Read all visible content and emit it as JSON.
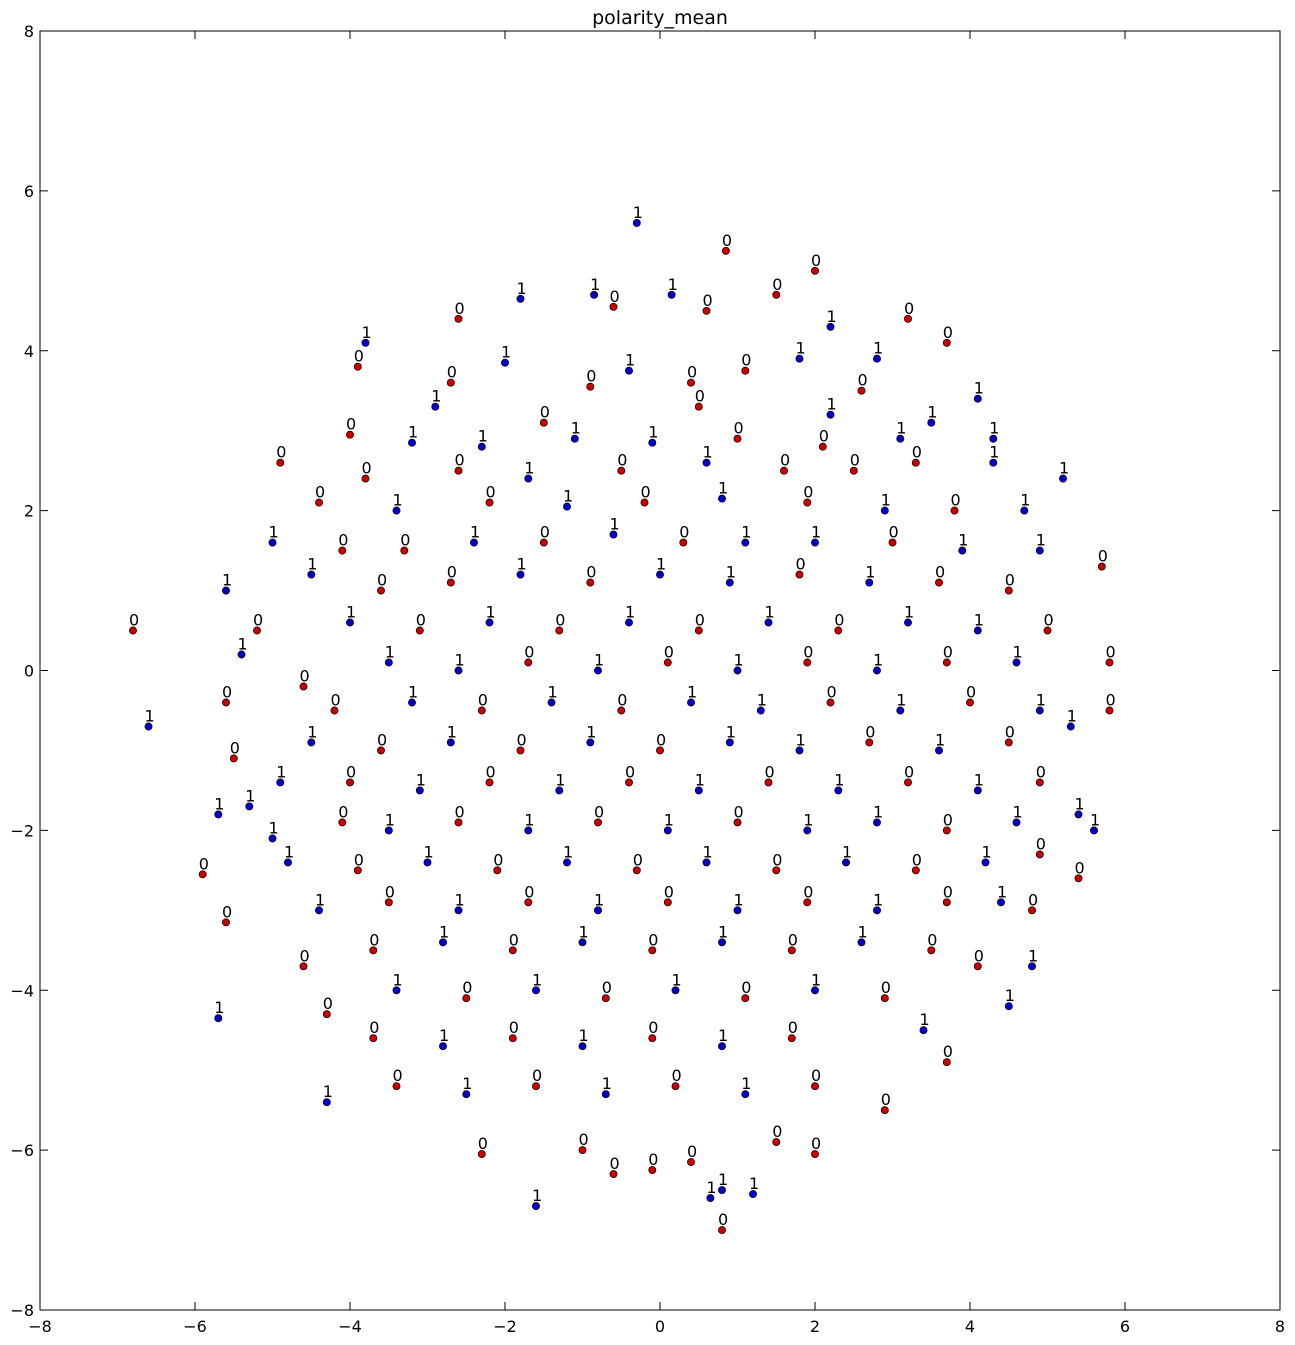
{
  "chart_data": {
    "type": "scatter",
    "title": "polarity_mean",
    "xlim": [
      -8,
      8
    ],
    "ylim": [
      -8,
      8
    ],
    "x_ticks": [
      -8,
      -6,
      -4,
      -2,
      0,
      2,
      4,
      6,
      8
    ],
    "y_ticks": [
      -8,
      -6,
      -4,
      -2,
      0,
      2,
      4,
      6,
      8
    ],
    "x_tick_labels": [
      "−8",
      "−6",
      "−4",
      "−2",
      "0",
      "2",
      "4",
      "6",
      "8"
    ],
    "y_tick_labels": [
      "−8",
      "−6",
      "−4",
      "−2",
      "0",
      "2",
      "4",
      "6",
      "8"
    ],
    "grid": false,
    "legend": "none",
    "colors": {
      "class_0": "#cc0000",
      "class_1": "#0000cc",
      "marker_edge": "#000000"
    },
    "points": [
      {
        "x": -0.3,
        "y": 5.6,
        "label": "1"
      },
      {
        "x": 0.85,
        "y": 5.25,
        "label": "0"
      },
      {
        "x": 2.0,
        "y": 5.0,
        "label": "0"
      },
      {
        "x": 1.5,
        "y": 4.7,
        "label": "0"
      },
      {
        "x": -1.8,
        "y": 4.65,
        "label": "1"
      },
      {
        "x": -0.85,
        "y": 4.7,
        "label": "1"
      },
      {
        "x": -0.6,
        "y": 4.55,
        "label": "0"
      },
      {
        "x": 0.15,
        "y": 4.7,
        "label": "1"
      },
      {
        "x": 0.6,
        "y": 4.5,
        "label": "0"
      },
      {
        "x": 2.2,
        "y": 4.3,
        "label": "1"
      },
      {
        "x": 3.2,
        "y": 4.4,
        "label": "0"
      },
      {
        "x": -2.6,
        "y": 4.4,
        "label": "0"
      },
      {
        "x": -3.8,
        "y": 4.1,
        "label": "1"
      },
      {
        "x": -3.9,
        "y": 3.8,
        "label": "0"
      },
      {
        "x": -2.0,
        "y": 3.85,
        "label": "1"
      },
      {
        "x": -0.4,
        "y": 3.75,
        "label": "1"
      },
      {
        "x": 1.1,
        "y": 3.75,
        "label": "0"
      },
      {
        "x": 1.8,
        "y": 3.9,
        "label": "1"
      },
      {
        "x": 2.8,
        "y": 3.9,
        "label": "1"
      },
      {
        "x": 3.7,
        "y": 4.1,
        "label": "0"
      },
      {
        "x": -2.7,
        "y": 3.6,
        "label": "0"
      },
      {
        "x": -0.9,
        "y": 3.55,
        "label": "0"
      },
      {
        "x": 0.4,
        "y": 3.6,
        "label": "0"
      },
      {
        "x": 2.6,
        "y": 3.5,
        "label": "0"
      },
      {
        "x": 4.1,
        "y": 3.4,
        "label": "1"
      },
      {
        "x": -2.9,
        "y": 3.3,
        "label": "1"
      },
      {
        "x": -1.5,
        "y": 3.1,
        "label": "0"
      },
      {
        "x": 0.5,
        "y": 3.3,
        "label": "0"
      },
      {
        "x": 2.2,
        "y": 3.2,
        "label": "1"
      },
      {
        "x": 3.5,
        "y": 3.1,
        "label": "1"
      },
      {
        "x": -4.0,
        "y": 2.95,
        "label": "0"
      },
      {
        "x": -3.2,
        "y": 2.85,
        "label": "1"
      },
      {
        "x": -2.3,
        "y": 2.8,
        "label": "1"
      },
      {
        "x": -1.1,
        "y": 2.9,
        "label": "1"
      },
      {
        "x": -0.1,
        "y": 2.85,
        "label": "1"
      },
      {
        "x": 1.0,
        "y": 2.9,
        "label": "0"
      },
      {
        "x": 2.1,
        "y": 2.8,
        "label": "0"
      },
      {
        "x": 3.1,
        "y": 2.9,
        "label": "1"
      },
      {
        "x": 4.3,
        "y": 2.9,
        "label": "1"
      },
      {
        "x": -4.9,
        "y": 2.6,
        "label": "0"
      },
      {
        "x": -3.8,
        "y": 2.4,
        "label": "0"
      },
      {
        "x": -2.6,
        "y": 2.5,
        "label": "0"
      },
      {
        "x": -1.7,
        "y": 2.4,
        "label": "1"
      },
      {
        "x": -0.5,
        "y": 2.5,
        "label": "0"
      },
      {
        "x": 0.6,
        "y": 2.6,
        "label": "1"
      },
      {
        "x": 1.6,
        "y": 2.5,
        "label": "0"
      },
      {
        "x": 2.5,
        "y": 2.5,
        "label": "0"
      },
      {
        "x": 3.3,
        "y": 2.6,
        "label": "0"
      },
      {
        "x": 4.3,
        "y": 2.6,
        "label": "1"
      },
      {
        "x": 5.2,
        "y": 2.4,
        "label": "1"
      },
      {
        "x": -4.4,
        "y": 2.1,
        "label": "0"
      },
      {
        "x": -3.4,
        "y": 2.0,
        "label": "1"
      },
      {
        "x": -2.2,
        "y": 2.1,
        "label": "0"
      },
      {
        "x": -1.2,
        "y": 2.05,
        "label": "1"
      },
      {
        "x": -0.2,
        "y": 2.1,
        "label": "0"
      },
      {
        "x": 0.8,
        "y": 2.15,
        "label": "1"
      },
      {
        "x": 1.9,
        "y": 2.1,
        "label": "0"
      },
      {
        "x": 2.9,
        "y": 2.0,
        "label": "1"
      },
      {
        "x": 3.8,
        "y": 2.0,
        "label": "0"
      },
      {
        "x": 4.7,
        "y": 2.0,
        "label": "1"
      },
      {
        "x": -5.0,
        "y": 1.6,
        "label": "1"
      },
      {
        "x": -4.1,
        "y": 1.5,
        "label": "0"
      },
      {
        "x": -3.3,
        "y": 1.5,
        "label": "0"
      },
      {
        "x": -2.4,
        "y": 1.6,
        "label": "1"
      },
      {
        "x": -1.5,
        "y": 1.6,
        "label": "0"
      },
      {
        "x": -0.6,
        "y": 1.7,
        "label": "1"
      },
      {
        "x": 0.3,
        "y": 1.6,
        "label": "0"
      },
      {
        "x": 1.1,
        "y": 1.6,
        "label": "1"
      },
      {
        "x": 2.0,
        "y": 1.6,
        "label": "1"
      },
      {
        "x": 3.0,
        "y": 1.6,
        "label": "0"
      },
      {
        "x": 3.9,
        "y": 1.5,
        "label": "1"
      },
      {
        "x": 4.9,
        "y": 1.5,
        "label": "1"
      },
      {
        "x": -5.6,
        "y": 1.0,
        "label": "1"
      },
      {
        "x": -4.5,
        "y": 1.2,
        "label": "1"
      },
      {
        "x": -3.6,
        "y": 1.0,
        "label": "0"
      },
      {
        "x": -2.7,
        "y": 1.1,
        "label": "0"
      },
      {
        "x": -1.8,
        "y": 1.2,
        "label": "1"
      },
      {
        "x": -0.9,
        "y": 1.1,
        "label": "0"
      },
      {
        "x": 0.0,
        "y": 1.2,
        "label": "1"
      },
      {
        "x": 0.9,
        "y": 1.1,
        "label": "1"
      },
      {
        "x": 1.8,
        "y": 1.2,
        "label": "0"
      },
      {
        "x": 2.7,
        "y": 1.1,
        "label": "1"
      },
      {
        "x": 3.6,
        "y": 1.1,
        "label": "0"
      },
      {
        "x": 4.5,
        "y": 1.0,
        "label": "0"
      },
      {
        "x": 5.7,
        "y": 1.3,
        "label": "0"
      },
      {
        "x": -6.8,
        "y": 0.5,
        "label": "0"
      },
      {
        "x": -5.2,
        "y": 0.5,
        "label": "0"
      },
      {
        "x": -4.0,
        "y": 0.6,
        "label": "1"
      },
      {
        "x": -3.1,
        "y": 0.5,
        "label": "0"
      },
      {
        "x": -2.2,
        "y": 0.6,
        "label": "1"
      },
      {
        "x": -1.3,
        "y": 0.5,
        "label": "0"
      },
      {
        "x": -0.4,
        "y": 0.6,
        "label": "1"
      },
      {
        "x": 0.5,
        "y": 0.5,
        "label": "0"
      },
      {
        "x": 1.4,
        "y": 0.6,
        "label": "1"
      },
      {
        "x": 2.3,
        "y": 0.5,
        "label": "0"
      },
      {
        "x": 3.2,
        "y": 0.6,
        "label": "1"
      },
      {
        "x": 4.1,
        "y": 0.5,
        "label": "1"
      },
      {
        "x": 5.0,
        "y": 0.5,
        "label": "0"
      },
      {
        "x": -5.4,
        "y": 0.2,
        "label": "1"
      },
      {
        "x": -4.6,
        "y": -0.2,
        "label": "0"
      },
      {
        "x": -3.5,
        "y": 0.1,
        "label": "1"
      },
      {
        "x": -2.6,
        "y": 0.0,
        "label": "1"
      },
      {
        "x": -1.7,
        "y": 0.1,
        "label": "0"
      },
      {
        "x": -0.8,
        "y": 0.0,
        "label": "1"
      },
      {
        "x": 0.1,
        "y": 0.1,
        "label": "0"
      },
      {
        "x": 1.0,
        "y": 0.0,
        "label": "1"
      },
      {
        "x": 1.9,
        "y": 0.1,
        "label": "0"
      },
      {
        "x": 2.8,
        "y": 0.0,
        "label": "1"
      },
      {
        "x": 3.7,
        "y": 0.1,
        "label": "0"
      },
      {
        "x": 4.6,
        "y": 0.1,
        "label": "1"
      },
      {
        "x": 5.8,
        "y": 0.1,
        "label": "0"
      },
      {
        "x": -5.6,
        "y": -0.4,
        "label": "0"
      },
      {
        "x": -4.2,
        "y": -0.5,
        "label": "0"
      },
      {
        "x": -3.2,
        "y": -0.4,
        "label": "1"
      },
      {
        "x": -2.3,
        "y": -0.5,
        "label": "0"
      },
      {
        "x": -1.4,
        "y": -0.4,
        "label": "1"
      },
      {
        "x": -0.5,
        "y": -0.5,
        "label": "0"
      },
      {
        "x": 0.4,
        "y": -0.4,
        "label": "1"
      },
      {
        "x": 1.3,
        "y": -0.5,
        "label": "1"
      },
      {
        "x": 2.2,
        "y": -0.4,
        "label": "0"
      },
      {
        "x": 3.1,
        "y": -0.5,
        "label": "1"
      },
      {
        "x": 4.0,
        "y": -0.4,
        "label": "0"
      },
      {
        "x": 4.9,
        "y": -0.5,
        "label": "1"
      },
      {
        "x": 5.8,
        "y": -0.5,
        "label": "0"
      },
      {
        "x": -6.6,
        "y": -0.7,
        "label": "1"
      },
      {
        "x": -5.5,
        "y": -1.1,
        "label": "0"
      },
      {
        "x": -4.5,
        "y": -0.9,
        "label": "1"
      },
      {
        "x": -3.6,
        "y": -1.0,
        "label": "0"
      },
      {
        "x": -2.7,
        "y": -0.9,
        "label": "1"
      },
      {
        "x": -1.8,
        "y": -1.0,
        "label": "0"
      },
      {
        "x": -0.9,
        "y": -0.9,
        "label": "1"
      },
      {
        "x": 0.0,
        "y": -1.0,
        "label": "0"
      },
      {
        "x": 0.9,
        "y": -0.9,
        "label": "1"
      },
      {
        "x": 1.8,
        "y": -1.0,
        "label": "1"
      },
      {
        "x": 2.7,
        "y": -0.9,
        "label": "0"
      },
      {
        "x": 3.6,
        "y": -1.0,
        "label": "1"
      },
      {
        "x": 4.5,
        "y": -0.9,
        "label": "0"
      },
      {
        "x": 5.3,
        "y": -0.7,
        "label": "1"
      },
      {
        "x": -5.7,
        "y": -1.8,
        "label": "1"
      },
      {
        "x": -5.3,
        "y": -1.7,
        "label": "1"
      },
      {
        "x": -4.9,
        "y": -1.4,
        "label": "1"
      },
      {
        "x": -4.0,
        "y": -1.4,
        "label": "0"
      },
      {
        "x": -3.1,
        "y": -1.5,
        "label": "1"
      },
      {
        "x": -2.2,
        "y": -1.4,
        "label": "0"
      },
      {
        "x": -1.3,
        "y": -1.5,
        "label": "1"
      },
      {
        "x": -0.4,
        "y": -1.4,
        "label": "0"
      },
      {
        "x": 0.5,
        "y": -1.5,
        "label": "1"
      },
      {
        "x": 1.4,
        "y": -1.4,
        "label": "0"
      },
      {
        "x": 2.3,
        "y": -1.5,
        "label": "1"
      },
      {
        "x": 3.2,
        "y": -1.4,
        "label": "0"
      },
      {
        "x": 4.1,
        "y": -1.5,
        "label": "1"
      },
      {
        "x": 4.9,
        "y": -1.4,
        "label": "0"
      },
      {
        "x": -5.0,
        "y": -2.1,
        "label": "1"
      },
      {
        "x": -4.1,
        "y": -1.9,
        "label": "0"
      },
      {
        "x": -3.5,
        "y": -2.0,
        "label": "1"
      },
      {
        "x": -2.6,
        "y": -1.9,
        "label": "0"
      },
      {
        "x": -1.7,
        "y": -2.0,
        "label": "1"
      },
      {
        "x": -0.8,
        "y": -1.9,
        "label": "0"
      },
      {
        "x": 0.1,
        "y": -2.0,
        "label": "1"
      },
      {
        "x": 1.0,
        "y": -1.9,
        "label": "0"
      },
      {
        "x": 1.9,
        "y": -2.0,
        "label": "1"
      },
      {
        "x": 2.8,
        "y": -1.9,
        "label": "1"
      },
      {
        "x": 3.7,
        "y": -2.0,
        "label": "0"
      },
      {
        "x": 4.6,
        "y": -1.9,
        "label": "1"
      },
      {
        "x": 5.4,
        "y": -1.8,
        "label": "1"
      },
      {
        "x": 5.6,
        "y": -2.0,
        "label": "1"
      },
      {
        "x": -5.9,
        "y": -2.55,
        "label": "0"
      },
      {
        "x": -4.8,
        "y": -2.4,
        "label": "1"
      },
      {
        "x": -3.9,
        "y": -2.5,
        "label": "0"
      },
      {
        "x": -3.0,
        "y": -2.4,
        "label": "1"
      },
      {
        "x": -2.1,
        "y": -2.5,
        "label": "0"
      },
      {
        "x": -1.2,
        "y": -2.4,
        "label": "1"
      },
      {
        "x": -0.3,
        "y": -2.5,
        "label": "0"
      },
      {
        "x": 0.6,
        "y": -2.4,
        "label": "1"
      },
      {
        "x": 1.5,
        "y": -2.5,
        "label": "0"
      },
      {
        "x": 2.4,
        "y": -2.4,
        "label": "1"
      },
      {
        "x": 3.3,
        "y": -2.5,
        "label": "0"
      },
      {
        "x": 4.2,
        "y": -2.4,
        "label": "1"
      },
      {
        "x": 4.9,
        "y": -2.3,
        "label": "0"
      },
      {
        "x": 5.4,
        "y": -2.6,
        "label": "0"
      },
      {
        "x": -5.6,
        "y": -3.15,
        "label": "0"
      },
      {
        "x": -4.4,
        "y": -3.0,
        "label": "1"
      },
      {
        "x": -3.5,
        "y": -2.9,
        "label": "0"
      },
      {
        "x": -2.6,
        "y": -3.0,
        "label": "1"
      },
      {
        "x": -1.7,
        "y": -2.9,
        "label": "0"
      },
      {
        "x": -0.8,
        "y": -3.0,
        "label": "1"
      },
      {
        "x": 0.1,
        "y": -2.9,
        "label": "0"
      },
      {
        "x": 1.0,
        "y": -3.0,
        "label": "1"
      },
      {
        "x": 1.9,
        "y": -2.9,
        "label": "0"
      },
      {
        "x": 2.8,
        "y": -3.0,
        "label": "1"
      },
      {
        "x": 3.7,
        "y": -2.9,
        "label": "0"
      },
      {
        "x": 4.4,
        "y": -2.9,
        "label": "1"
      },
      {
        "x": 4.8,
        "y": -3.0,
        "label": "0"
      },
      {
        "x": -4.6,
        "y": -3.7,
        "label": "0"
      },
      {
        "x": -3.7,
        "y": -3.5,
        "label": "0"
      },
      {
        "x": -2.8,
        "y": -3.4,
        "label": "1"
      },
      {
        "x": -1.9,
        "y": -3.5,
        "label": "0"
      },
      {
        "x": -1.0,
        "y": -3.4,
        "label": "1"
      },
      {
        "x": -0.1,
        "y": -3.5,
        "label": "0"
      },
      {
        "x": 0.8,
        "y": -3.4,
        "label": "1"
      },
      {
        "x": 1.7,
        "y": -3.5,
        "label": "0"
      },
      {
        "x": 2.6,
        "y": -3.4,
        "label": "1"
      },
      {
        "x": 3.5,
        "y": -3.5,
        "label": "0"
      },
      {
        "x": 4.1,
        "y": -3.7,
        "label": "0"
      },
      {
        "x": 4.8,
        "y": -3.7,
        "label": "1"
      },
      {
        "x": -5.7,
        "y": -4.35,
        "label": "1"
      },
      {
        "x": -4.3,
        "y": -4.3,
        "label": "0"
      },
      {
        "x": -3.4,
        "y": -4.0,
        "label": "1"
      },
      {
        "x": -2.5,
        "y": -4.1,
        "label": "0"
      },
      {
        "x": -1.6,
        "y": -4.0,
        "label": "1"
      },
      {
        "x": -0.7,
        "y": -4.1,
        "label": "0"
      },
      {
        "x": 0.2,
        "y": -4.0,
        "label": "1"
      },
      {
        "x": 1.1,
        "y": -4.1,
        "label": "0"
      },
      {
        "x": 2.0,
        "y": -4.0,
        "label": "1"
      },
      {
        "x": 2.9,
        "y": -4.1,
        "label": "0"
      },
      {
        "x": 4.5,
        "y": -4.2,
        "label": "1"
      },
      {
        "x": -3.7,
        "y": -4.6,
        "label": "0"
      },
      {
        "x": -2.8,
        "y": -4.7,
        "label": "1"
      },
      {
        "x": -1.9,
        "y": -4.6,
        "label": "0"
      },
      {
        "x": -1.0,
        "y": -4.7,
        "label": "1"
      },
      {
        "x": -0.1,
        "y": -4.6,
        "label": "0"
      },
      {
        "x": 0.8,
        "y": -4.7,
        "label": "1"
      },
      {
        "x": 1.7,
        "y": -4.6,
        "label": "0"
      },
      {
        "x": 3.4,
        "y": -4.5,
        "label": "1"
      },
      {
        "x": 3.7,
        "y": -4.9,
        "label": "0"
      },
      {
        "x": -4.3,
        "y": -5.4,
        "label": "1"
      },
      {
        "x": -3.4,
        "y": -5.2,
        "label": "0"
      },
      {
        "x": -2.5,
        "y": -5.3,
        "label": "1"
      },
      {
        "x": -1.6,
        "y": -5.2,
        "label": "0"
      },
      {
        "x": -0.7,
        "y": -5.3,
        "label": "1"
      },
      {
        "x": 0.2,
        "y": -5.2,
        "label": "0"
      },
      {
        "x": 1.1,
        "y": -5.3,
        "label": "1"
      },
      {
        "x": 2.0,
        "y": -5.2,
        "label": "0"
      },
      {
        "x": 2.9,
        "y": -5.5,
        "label": "0"
      },
      {
        "x": -2.3,
        "y": -6.05,
        "label": "0"
      },
      {
        "x": -1.0,
        "y": -6.0,
        "label": "0"
      },
      {
        "x": -0.6,
        "y": -6.3,
        "label": "0"
      },
      {
        "x": -0.1,
        "y": -6.25,
        "label": "0"
      },
      {
        "x": 0.4,
        "y": -6.15,
        "label": "0"
      },
      {
        "x": 1.5,
        "y": -5.9,
        "label": "0"
      },
      {
        "x": 2.0,
        "y": -6.05,
        "label": "0"
      },
      {
        "x": -1.6,
        "y": -6.7,
        "label": "1"
      },
      {
        "x": 0.65,
        "y": -6.6,
        "label": "1"
      },
      {
        "x": 0.8,
        "y": -6.5,
        "label": "1"
      },
      {
        "x": 1.2,
        "y": -6.55,
        "label": "1"
      },
      {
        "x": 0.8,
        "y": -7.0,
        "label": "0"
      }
    ]
  }
}
